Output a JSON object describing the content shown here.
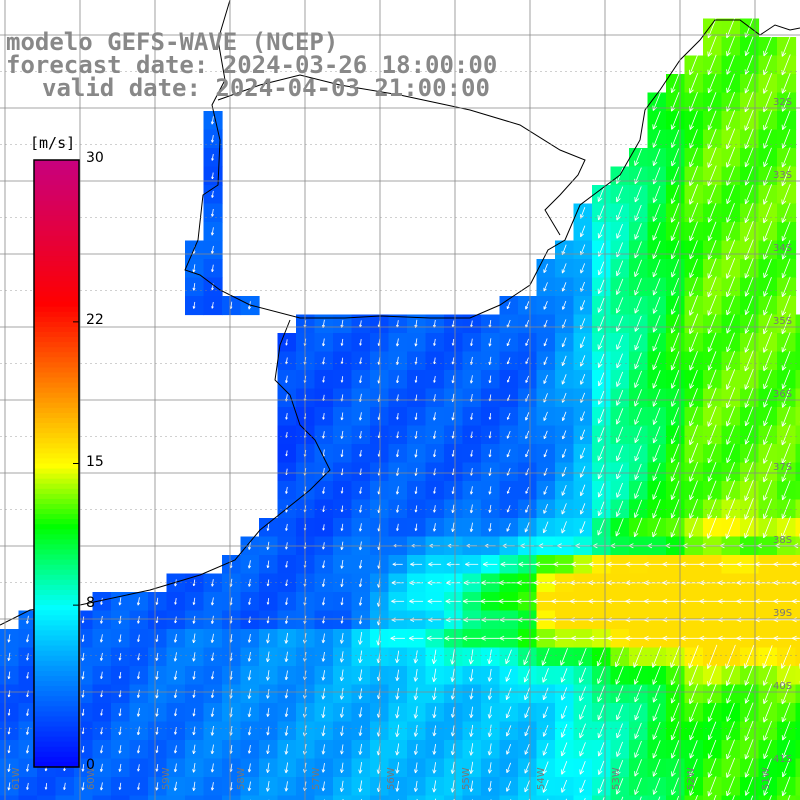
{
  "header": {
    "model": "modelo GEFS-WAVE (NCEP)",
    "forecast": "forecast date: 2024-03-26 18:00:00",
    "valid": "valid date: 2024-04-03 21:00:00"
  },
  "colorbar": {
    "units": "[m/s]",
    "ticks": [
      "30",
      "22",
      "15",
      "8",
      "0"
    ],
    "tick_values": [
      30,
      22,
      15,
      8,
      0
    ],
    "min": 0,
    "max": 30,
    "stops": [
      {
        "v": 0,
        "color": "#0000ff"
      },
      {
        "v": 5,
        "color": "#0096ff"
      },
      {
        "v": 8,
        "color": "#00ffff"
      },
      {
        "v": 12,
        "color": "#00ff00"
      },
      {
        "v": 15,
        "color": "#ffff00"
      },
      {
        "v": 19,
        "color": "#ff8000"
      },
      {
        "v": 23,
        "color": "#ff0000"
      },
      {
        "v": 30,
        "color": "#c8007d"
      }
    ]
  },
  "map": {
    "lon_labels": [
      "61W",
      "60W",
      "59W",
      "58W",
      "57W",
      "56W",
      "55W",
      "54W",
      "53W",
      "52W",
      "51W"
    ],
    "lat_labels": [
      "32S",
      "33S",
      "34S",
      "35S",
      "36S",
      "37S",
      "38S",
      "39S",
      "40S",
      "41S"
    ],
    "land_color": "#ffffff",
    "grid_color": "#888888",
    "arrow_color": "#ffffff"
  }
}
